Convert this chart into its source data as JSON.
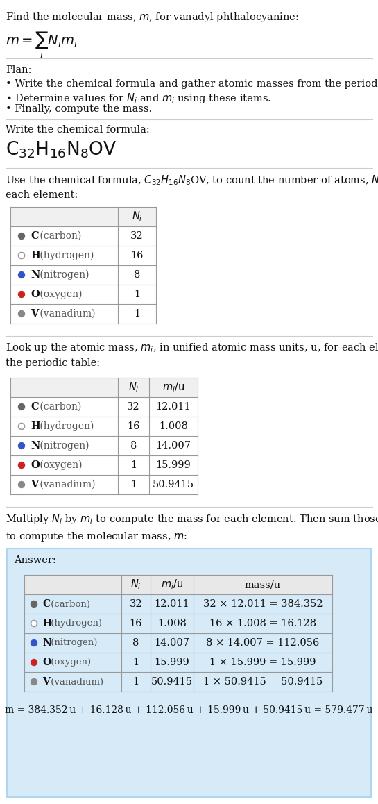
{
  "bg_color": "#ffffff",
  "answer_bg_color": "#d6eaf8",
  "answer_border_color": "#aed6f1",
  "table_header_color": "#f0f0f0",
  "table_line_color": "#999999",
  "sep_line_color": "#cccccc",
  "elements": [
    "C (carbon)",
    "H (hydrogen)",
    "N (nitrogen)",
    "O (oxygen)",
    "V (vanadium)"
  ],
  "dot_colors": [
    "#666666",
    "#ffffff",
    "#3355cc",
    "#cc2222",
    "#888888"
  ],
  "dot_borders": [
    "#666666",
    "#999999",
    "#3355cc",
    "#cc2222",
    "#888888"
  ],
  "Ni": [
    32,
    16,
    8,
    1,
    1
  ],
  "mi": [
    "12.011",
    "1.008",
    "14.007",
    "15.999",
    "50.9415"
  ],
  "mass_expr": [
    "32 × 12.011 = 384.352",
    "16 × 1.008 = 16.128",
    "8 × 14.007 = 112.056",
    "1 × 15.999 = 15.999",
    "1 × 50.9415 = 50.9415"
  ],
  "final_eq": "m = 384.352 u + 16.128 u + 112.056 u + 15.999 u + 50.9415 u = 579.477 u"
}
